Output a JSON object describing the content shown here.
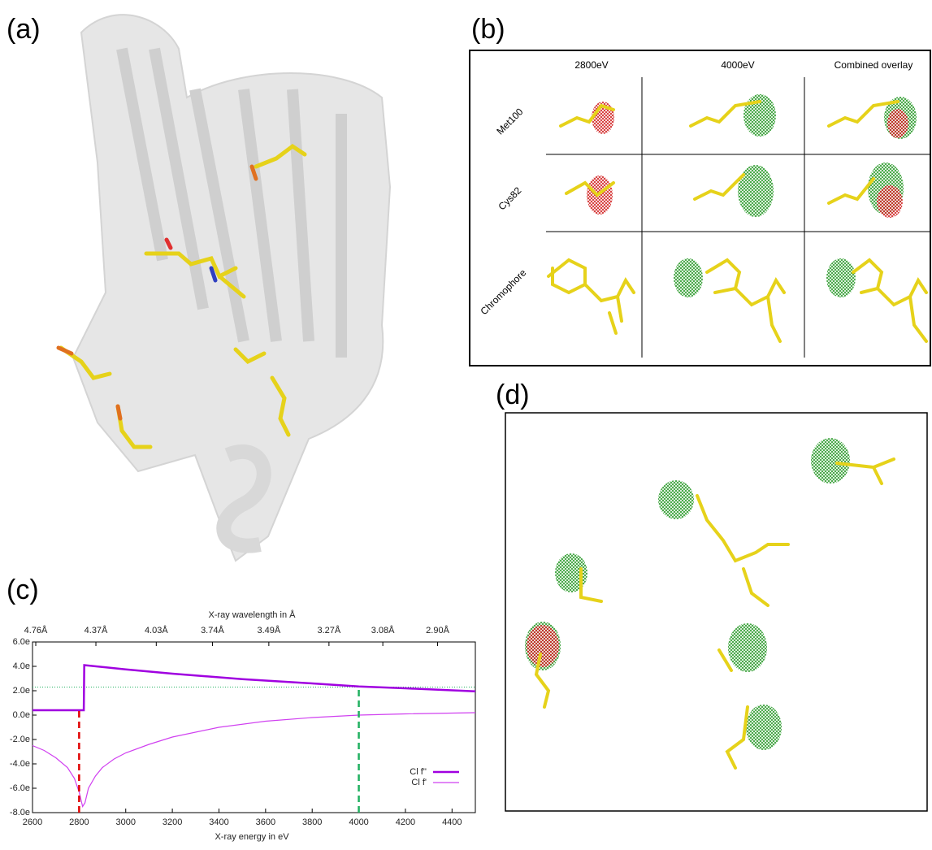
{
  "panels": {
    "a": "(a)",
    "b": "(b)",
    "c": "(c)",
    "d": "(d)"
  },
  "table": {
    "columns": [
      "2800eV",
      "4000eV",
      "Combined overlay"
    ],
    "rows": [
      "Met100",
      "Cys82",
      "Chromophore"
    ]
  },
  "chart_data": {
    "type": "line",
    "x_label": "X-ray energy in eV",
    "x2_label": "X-ray wavelength in Å",
    "xlim": [
      2600,
      4500
    ],
    "ylim": [
      -8,
      6
    ],
    "xticks": [
      2600,
      2800,
      3000,
      3200,
      3400,
      3600,
      3800,
      4000,
      4200,
      4400
    ],
    "x2ticks": [
      {
        "value": 2614,
        "label": "4.76Å"
      },
      {
        "value": 2872,
        "label": "4.37Å"
      },
      {
        "value": 3131,
        "label": "4.03Å"
      },
      {
        "value": 3372,
        "label": "3.74Å"
      },
      {
        "value": 3614,
        "label": "3.49Å"
      },
      {
        "value": 3872,
        "label": "3.27Å"
      },
      {
        "value": 4103,
        "label": "3.08Å"
      },
      {
        "value": 4338,
        "label": "2.90Å"
      }
    ],
    "yticks": [
      {
        "value": -8,
        "label": "-8.0e"
      },
      {
        "value": -6,
        "label": "-6.0e"
      },
      {
        "value": -4,
        "label": "-4.0e"
      },
      {
        "value": -2,
        "label": "-2.0e"
      },
      {
        "value": 0,
        "label": "0.0e"
      },
      {
        "value": 2,
        "label": "2.0e"
      },
      {
        "value": 4,
        "label": "4.0e"
      },
      {
        "value": 6,
        "label": "6.0e"
      }
    ],
    "legend": "lower right",
    "series": [
      {
        "name": "Cl f''",
        "color": "#a000e0",
        "width": 2.5,
        "x": [
          2600,
          2820,
          2822,
          3000,
          3200,
          3500,
          3800,
          4000,
          4200,
          4500
        ],
        "values": [
          0.4,
          0.4,
          4.1,
          3.75,
          3.4,
          2.95,
          2.6,
          2.35,
          2.2,
          1.95
        ]
      },
      {
        "name": "Cl f'",
        "color": "#d040f0",
        "width": 1.2,
        "x": [
          2600,
          2650,
          2700,
          2750,
          2780,
          2800,
          2815,
          2825,
          2840,
          2870,
          2900,
          2950,
          3000,
          3100,
          3200,
          3400,
          3600,
          3800,
          4000,
          4200,
          4500
        ],
        "values": [
          -2.5,
          -2.9,
          -3.5,
          -4.3,
          -5.2,
          -6.3,
          -7.5,
          -7.2,
          -6.0,
          -5.0,
          -4.3,
          -3.6,
          -3.1,
          -2.4,
          -1.8,
          -1.0,
          -0.5,
          -0.2,
          0.0,
          0.1,
          0.2
        ]
      }
    ],
    "markers": [
      {
        "x": 2800,
        "color": "#e00000"
      },
      {
        "x": 4000,
        "color": "#20b060"
      }
    ],
    "reference_y": 2.3,
    "reference_color": "#20b060"
  }
}
